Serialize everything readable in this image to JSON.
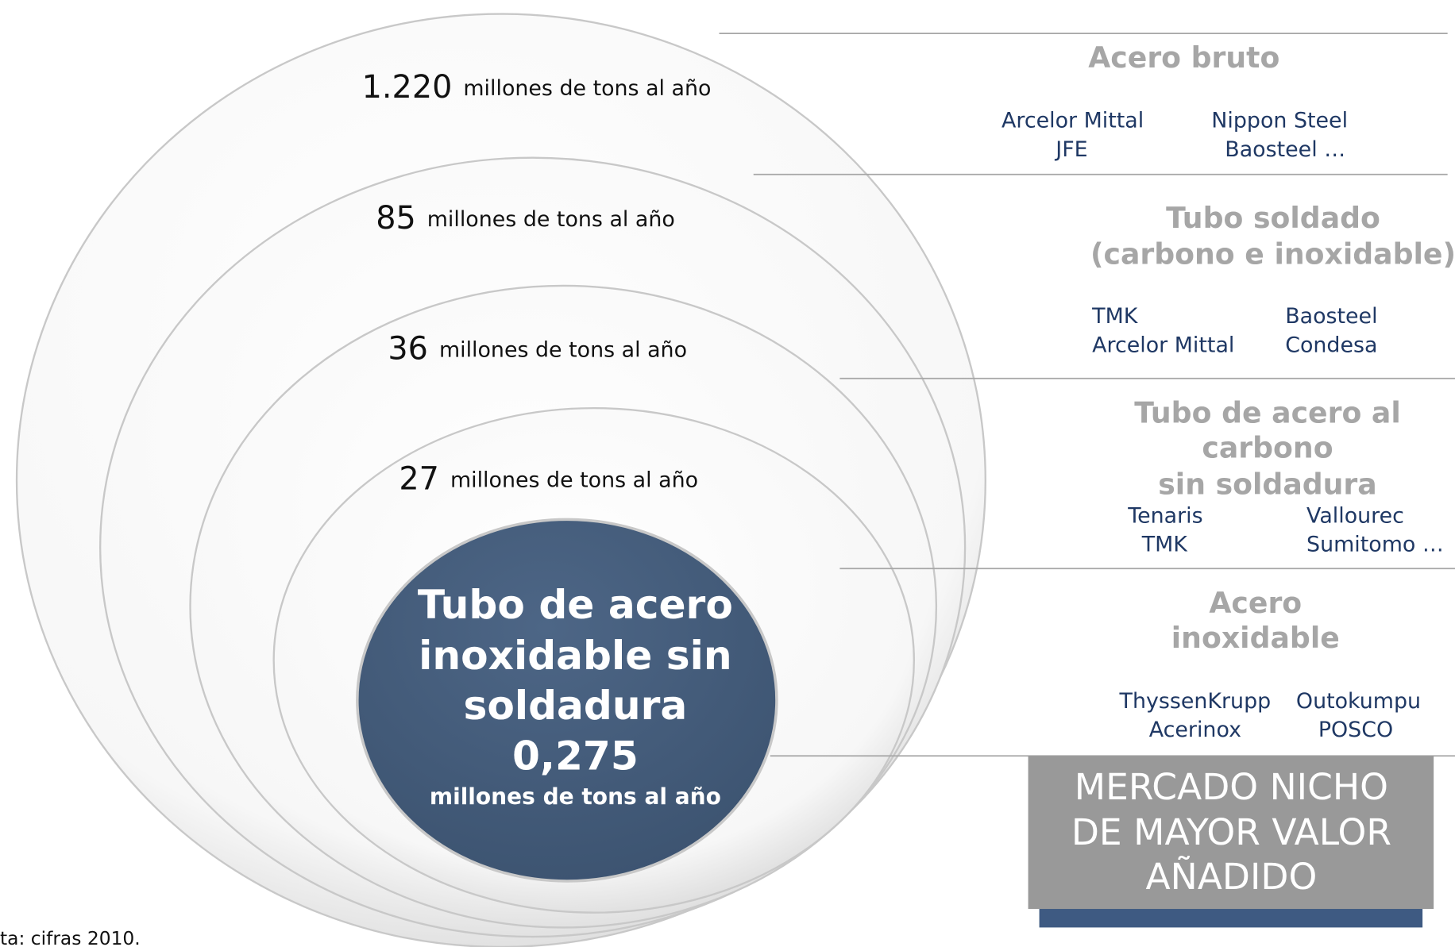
{
  "levels": [
    {
      "value": "1.220",
      "unit": "millones de tons al año",
      "title": [
        "Acero bruto"
      ],
      "companies": [
        "Arcelor Mittal",
        "JFE",
        "Nippon Steel",
        "Baosteel …"
      ]
    },
    {
      "value": "85",
      "unit": "millones de tons al año",
      "title": [
        "Tubo soldado",
        "(carbono e inoxidable)"
      ],
      "companies": [
        "TMK",
        "Arcelor Mittal",
        "Baosteel",
        "Condesa"
      ]
    },
    {
      "value": "36",
      "unit": "millones de tons al año",
      "title": [
        "Tubo de acero al",
        "carbono",
        "sin soldadura"
      ],
      "companies": [
        "Tenaris",
        "TMK",
        "Vallourec",
        "Sumitomo …"
      ]
    },
    {
      "value": "27",
      "unit": "millones de tons al año",
      "title": [
        "Acero",
        "inoxidable"
      ],
      "companies": [
        "ThyssenKrupp",
        "Acerinox",
        "Outokumpu",
        "POSCO"
      ]
    }
  ],
  "center": {
    "lines": [
      "Tubo de acero",
      "inoxidable sin",
      "soldadura"
    ],
    "value": "0,275",
    "unit": "millones de tons al año"
  },
  "callout": [
    "MERCADO NICHO",
    "DE MAYOR VALOR",
    "AÑADIDO"
  ],
  "footnote": "ta: cifras 2010."
}
